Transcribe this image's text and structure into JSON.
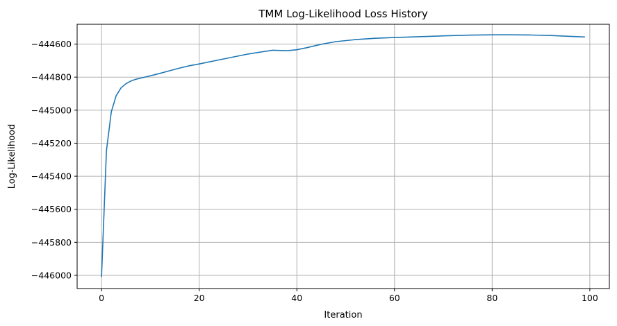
{
  "chart_data": {
    "type": "line",
    "title": "TMM Log-Likelihood Loss History",
    "xlabel": "Iteration",
    "ylabel": "Log-Likelihood",
    "xlim": [
      -5,
      104
    ],
    "ylim": [
      -446080,
      -444480
    ],
    "grid": true,
    "xticks": [
      0,
      20,
      40,
      60,
      80,
      100
    ],
    "xtick_labels": [
      "0",
      "20",
      "40",
      "60",
      "80",
      "100"
    ],
    "yticks": [
      -446000,
      -445800,
      -445600,
      -445400,
      -445200,
      -445000,
      -444800,
      -444600
    ],
    "ytick_labels": [
      "−446000",
      "−445800",
      "−445600",
      "−445400",
      "−445200",
      "−445000",
      "−444800",
      "−444600"
    ],
    "series": [
      {
        "color": "#1f77b4",
        "x": [
          0,
          1,
          2,
          3,
          4,
          5,
          6,
          7,
          8,
          10,
          12,
          14,
          16,
          18,
          20,
          25,
          30,
          35,
          38,
          40,
          42,
          45,
          48,
          52,
          56,
          60,
          65,
          70,
          75,
          80,
          84,
          88,
          92,
          96,
          99
        ],
        "y": [
          -446010,
          -445245,
          -445010,
          -444912,
          -444865,
          -444840,
          -444824,
          -444813,
          -444806,
          -444792,
          -444777,
          -444761,
          -444745,
          -444731,
          -444720,
          -444690,
          -444660,
          -444637,
          -444640,
          -444634,
          -444622,
          -444601,
          -444585,
          -444573,
          -444565,
          -444560,
          -444555,
          -444550,
          -444546,
          -444544,
          -444544,
          -444545,
          -444548,
          -444553,
          -444557
        ]
      }
    ]
  }
}
